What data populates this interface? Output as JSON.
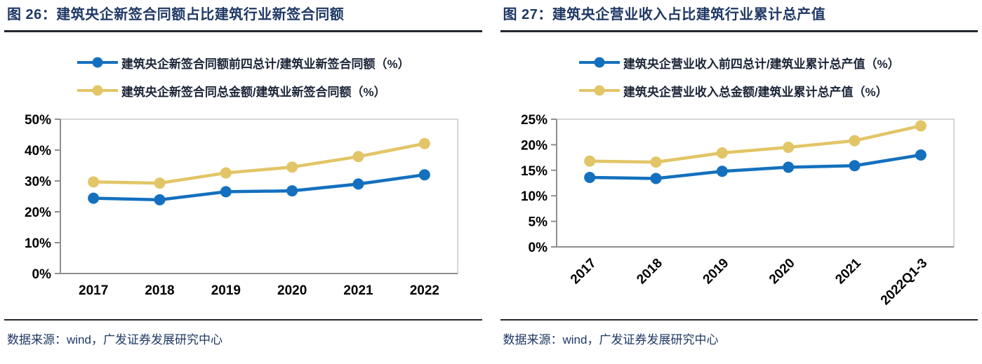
{
  "colors": {
    "title_navy": "#1F3864",
    "rule_dark": "#23272E",
    "series_blue": "#1470BE",
    "series_yellow": "#E2C566",
    "plot_border": "#C8C8C8",
    "axis_line": "#8F8F8F",
    "axis_text": "#000000",
    "legend_text": "#1B2437",
    "source_text": "#1F3864"
  },
  "chart_data": [
    {
      "type": "line",
      "title": "图 26：建筑央企新签合同额占比建筑行业新签合同额",
      "categories": [
        "2017",
        "2018",
        "2019",
        "2020",
        "2021",
        "2022"
      ],
      "series": [
        {
          "name": "建筑央企新签合同额前四总计/建筑业新签合同额（%）",
          "color": "#1470BE",
          "values": [
            24.4,
            23.9,
            26.5,
            26.8,
            29.0,
            32.0
          ]
        },
        {
          "name": "建筑央企新签合同总金额/建筑业新签合同额（%）",
          "color": "#E2C566",
          "values": [
            29.7,
            29.3,
            32.6,
            34.5,
            37.9,
            42.1
          ]
        }
      ],
      "ylim": [
        0,
        50
      ],
      "ytick_step": 10,
      "ytick_suffix": "%",
      "x_label_rotation": 0,
      "legend_position": "top-center",
      "grid": false,
      "source": "数据来源：wind，广发证券发展研究中心"
    },
    {
      "type": "line",
      "title": "图 27：建筑央企营业收入占比建筑行业累计总产值",
      "categories": [
        "2017",
        "2018",
        "2019",
        "2020",
        "2021",
        "2022Q1-3"
      ],
      "series": [
        {
          "name": "建筑央企营业收入前四总计/建筑业累计总产值（%）",
          "color": "#1470BE",
          "values": [
            13.6,
            13.4,
            14.8,
            15.6,
            15.9,
            18.0
          ]
        },
        {
          "name": "建筑央企营业收入总金额/建筑业累计总产值（%）",
          "color": "#E2C566",
          "values": [
            16.8,
            16.6,
            18.4,
            19.5,
            20.8,
            23.7
          ]
        }
      ],
      "ylim": [
        0,
        25
      ],
      "ytick_step": 5,
      "ytick_suffix": "%",
      "x_label_rotation": -45,
      "legend_position": "top-center",
      "grid": false,
      "source": "数据来源：wind，广发证券发展研究中心"
    }
  ]
}
